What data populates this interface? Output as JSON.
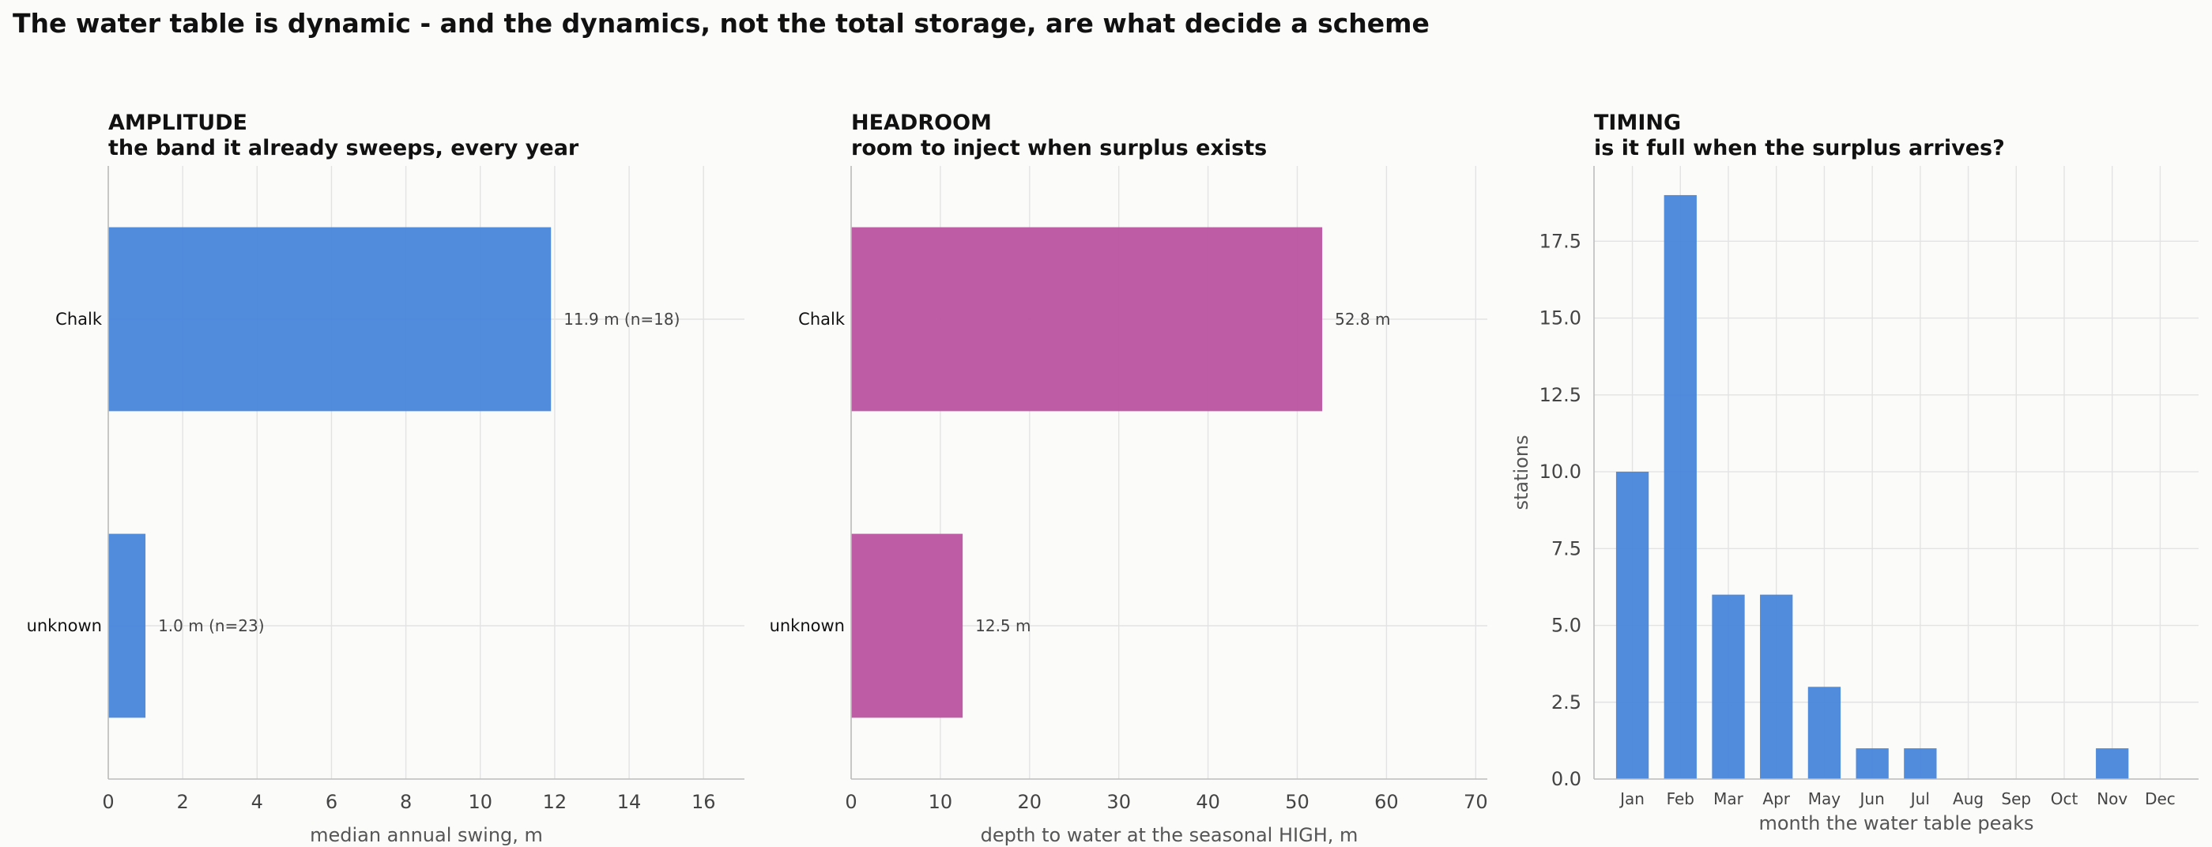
{
  "suptitle": "The water table is dynamic - and the dynamics, not the total storage, are what decide a scheme",
  "colors": {
    "blue": "#4a87db",
    "magenta": "#bc57a3"
  },
  "chart_data": [
    {
      "type": "bar",
      "orientation": "horizontal",
      "title": "AMPLITUDE",
      "subtitle": "the band it already sweeps, every year",
      "categories": [
        "Chalk",
        "unknown"
      ],
      "values": [
        11.9,
        1.0
      ],
      "data_labels": [
        "11.9 m  (n=18)",
        "1.0 m  (n=23)"
      ],
      "xlabel": "median annual swing, m",
      "xlim": [
        0,
        17.1
      ],
      "xticks": [
        0,
        2,
        4,
        6,
        8,
        10,
        12,
        14,
        16
      ],
      "grid": true,
      "color": "#4a87db"
    },
    {
      "type": "bar",
      "orientation": "horizontal",
      "title": "HEADROOM",
      "subtitle": "room to inject when surplus exists",
      "categories": [
        "Chalk",
        "unknown"
      ],
      "values": [
        52.8,
        12.5
      ],
      "data_labels": [
        "52.8 m",
        "12.5 m"
      ],
      "xlabel": "depth to water at the seasonal HIGH, m",
      "xlim": [
        0,
        71.3
      ],
      "xticks": [
        0,
        10,
        20,
        30,
        40,
        50,
        60,
        70
      ],
      "grid": true,
      "color": "#bc57a3"
    },
    {
      "type": "bar",
      "orientation": "vertical",
      "title": "TIMING",
      "subtitle": "is it full when the surplus arrives?",
      "categories": [
        "Jan",
        "Feb",
        "Mar",
        "Apr",
        "May",
        "Jun",
        "Jul",
        "Aug",
        "Sep",
        "Oct",
        "Nov",
        "Dec"
      ],
      "values": [
        10,
        19,
        6,
        6,
        3,
        1,
        1,
        0,
        0,
        0,
        1,
        0
      ],
      "xlabel": "month the water table peaks",
      "ylabel": "stations",
      "ylim": [
        0,
        19.95
      ],
      "yticks": [
        0.0,
        2.5,
        5.0,
        7.5,
        10.0,
        12.5,
        15.0,
        17.5
      ],
      "ytick_labels": [
        "0.0",
        "2.5",
        "5.0",
        "7.5",
        "10.0",
        "12.5",
        "15.0",
        "17.5"
      ],
      "grid": true,
      "color": "#4a87db"
    }
  ]
}
